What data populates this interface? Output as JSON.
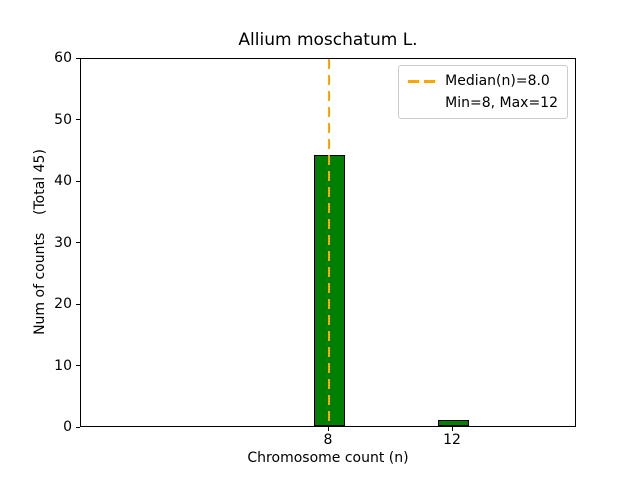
{
  "chart_data": {
    "type": "bar",
    "title": "Allium moschatum L.",
    "xlabel": "Chromosome count (n)",
    "ylabel": "Num of counts    (Total 45)",
    "categories": [
      8,
      12
    ],
    "values": [
      44,
      1
    ],
    "bar_color": "#008000",
    "bar_edge_color": "#000000",
    "bar_width_data_units": 1,
    "xlim": [
      0,
      16
    ],
    "ylim": [
      0,
      60
    ],
    "yticks": [
      0,
      10,
      20,
      30,
      40,
      50,
      60
    ],
    "xticks": [
      8,
      12
    ],
    "grid": false,
    "median_line": {
      "x": 8.0,
      "color": "#FFA500",
      "style": "dashed"
    },
    "legend": {
      "position": "upper right",
      "entries": [
        {
          "sample": "dashed-line",
          "color": "#FFA500",
          "label": "Median(n)=8.0"
        },
        {
          "sample": "none",
          "color": "",
          "label": "Min=8, Max=12"
        }
      ]
    }
  }
}
